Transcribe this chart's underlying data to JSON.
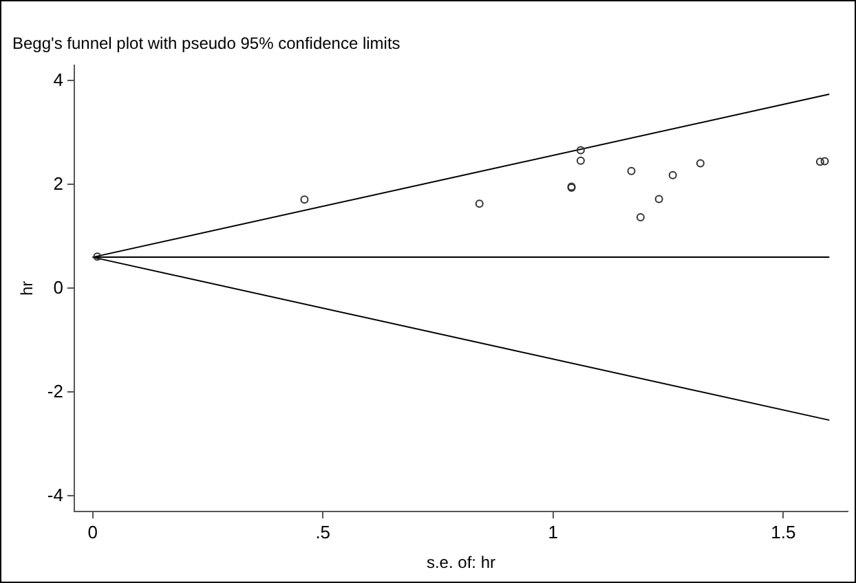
{
  "chart_data": {
    "type": "scatter",
    "title": "Begg's funnel plot with pseudo 95% confidence limits",
    "xlabel": "s.e. of: hr",
    "ylabel": "hr",
    "xlim": [
      -0.04,
      1.64
    ],
    "ylim": [
      -4.3,
      4.3
    ],
    "xticks": [
      0,
      {
        "value": 0.5,
        "label": ".5"
      },
      1,
      1.5
    ],
    "yticks": [
      -4,
      -2,
      0,
      2,
      4
    ],
    "line_style": "solid",
    "series": [
      {
        "type": "scatter",
        "marker": "circle",
        "color": "#333333",
        "x": [
          0.01,
          0.46,
          0.84,
          1.04,
          1.04,
          1.06,
          1.06,
          1.17,
          1.19,
          1.23,
          1.26,
          1.32,
          1.58,
          1.59
        ],
        "values": [
          0.61,
          1.71,
          1.63,
          1.96,
          1.94,
          2.46,
          2.66,
          2.26,
          1.37,
          1.72,
          2.18,
          2.41,
          2.44,
          2.45
        ]
      },
      {
        "type": "line",
        "color": "#000000",
        "x": [
          0,
          1.6
        ],
        "values": [
          0.6,
          3.74
        ]
      },
      {
        "type": "line",
        "color": "#000000",
        "x": [
          0,
          1.6
        ],
        "values": [
          0.6,
          0.6
        ]
      },
      {
        "type": "line",
        "color": "#000000",
        "x": [
          0,
          1.6
        ],
        "values": [
          0.6,
          -2.54
        ]
      }
    ]
  }
}
